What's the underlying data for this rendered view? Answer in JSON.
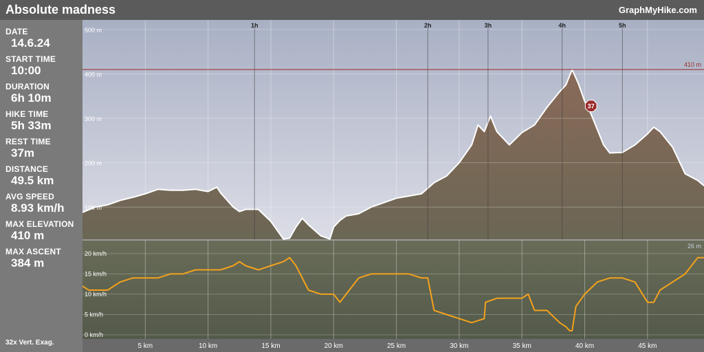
{
  "header": {
    "title": "Absolute madness",
    "brand": "GraphMyHike.com"
  },
  "stats": [
    {
      "label": "DATE",
      "value": "14.6.24"
    },
    {
      "label": "START TIME",
      "value": "10:00"
    },
    {
      "label": "DURATION",
      "value": "6h 10m"
    },
    {
      "label": "HIKE TIME",
      "value": "5h 33m"
    },
    {
      "label": "REST TIME",
      "value": "37m"
    },
    {
      "label": "DISTANCE",
      "value": "49.5 km"
    },
    {
      "label": "AVG SPEED",
      "value": "8.93 km/h"
    },
    {
      "label": "MAX ELEVATION",
      "value": "410 m"
    },
    {
      "label": "MAX ASCENT",
      "value": "384 m"
    }
  ],
  "footer": {
    "vert_exag": "32x Vert. Exag."
  },
  "colors": {
    "elevation_fill": "#7e7262",
    "elevation_line": "#ffffff",
    "speed_line": "#f4a21c",
    "max_line": "#9b2a2a",
    "rest_badge": "#9b2a2a"
  },
  "chart_data": [
    {
      "type": "area",
      "title": "",
      "xlabel": "",
      "ylabel": "",
      "unit": "m",
      "xlim": [
        0,
        49.5
      ],
      "ylim": [
        26,
        500
      ],
      "y_ticks": [
        "100 m",
        "200 m",
        "300 m",
        "400 m",
        "500 m"
      ],
      "y_tick_values": [
        100,
        200,
        300,
        400,
        500
      ],
      "time_markers": [
        {
          "label": "1h",
          "x": 13.7
        },
        {
          "label": "2h",
          "x": 27.5
        },
        {
          "label": "3h",
          "x": 32.3
        },
        {
          "label": "4h",
          "x": 38.2
        },
        {
          "label": "5h",
          "x": 43.0
        }
      ],
      "max_elevation": {
        "label": "410 m",
        "value": 410
      },
      "min_elevation": {
        "label": "26 m",
        "value": 26
      },
      "rest_stop": {
        "label": "37",
        "x": 40.5,
        "y": 328
      },
      "x": [
        0,
        1,
        2,
        3,
        4,
        5,
        6,
        7,
        8,
        9,
        10,
        10.7,
        11,
        12,
        12.5,
        13,
        13.5,
        14,
        15,
        16,
        16.5,
        17,
        17.5,
        18,
        19,
        19.7,
        20,
        20.5,
        21,
        22,
        23,
        24,
        25,
        26,
        27,
        28,
        29,
        30,
        31,
        31.5,
        32,
        32.5,
        33,
        34,
        35,
        36,
        37,
        38,
        38.5,
        39,
        39.5,
        40,
        40.5,
        41,
        41.5,
        42,
        43,
        44,
        45,
        45.5,
        46,
        47,
        48,
        49,
        49.5
      ],
      "y": [
        88,
        100,
        105,
        115,
        122,
        130,
        140,
        138,
        138,
        140,
        135,
        145,
        132,
        100,
        90,
        95,
        95,
        95,
        68,
        28,
        30,
        55,
        75,
        60,
        35,
        28,
        55,
        70,
        80,
        85,
        100,
        110,
        120,
        125,
        130,
        155,
        170,
        200,
        240,
        285,
        270,
        305,
        270,
        240,
        268,
        285,
        325,
        360,
        375,
        410,
        378,
        338,
        310,
        275,
        240,
        222,
        223,
        240,
        265,
        280,
        270,
        235,
        175,
        160,
        148
      ]
    },
    {
      "type": "line",
      "title": "",
      "xlabel": "",
      "ylabel": "",
      "unit": "km/h",
      "xlim": [
        0,
        49.5
      ],
      "ylim": [
        0,
        22
      ],
      "y_ticks": [
        "0 km/h",
        "5 km/h",
        "10 km/h",
        "15 km/h",
        "20 km/h"
      ],
      "y_tick_values": [
        0,
        5,
        10,
        15,
        20
      ],
      "x_ticks": [
        "5 km",
        "10 km",
        "15 km",
        "20 km",
        "25 km",
        "30 km",
        "35 km",
        "40 km",
        "45 km"
      ],
      "x_tick_values": [
        5,
        10,
        15,
        20,
        25,
        30,
        35,
        40,
        45
      ],
      "x": [
        0,
        0.5,
        1,
        2,
        3,
        4,
        5,
        6,
        7,
        8,
        9,
        10,
        11,
        12,
        12.5,
        13,
        14,
        15,
        16,
        16.5,
        17,
        18,
        19,
        20,
        20.5,
        21,
        22,
        23,
        24,
        25,
        26,
        27,
        27.5,
        28,
        29,
        30,
        31,
        32,
        32.1,
        33,
        34,
        35,
        35.5,
        36,
        37,
        38,
        38.5,
        38.8,
        39,
        39.3,
        40,
        41,
        42,
        43,
        44,
        45,
        45.5,
        46,
        47,
        48,
        49,
        49.5
      ],
      "y": [
        12,
        11,
        11,
        11,
        13,
        14,
        14,
        14,
        15,
        15,
        16,
        16,
        16,
        17,
        18,
        17,
        16,
        17,
        18,
        19,
        17,
        11,
        10,
        10,
        8,
        10,
        14,
        15,
        15,
        15,
        15,
        14,
        14,
        6,
        5,
        4,
        3,
        4,
        8,
        9,
        9,
        9,
        10,
        6,
        6,
        3,
        2,
        1,
        1,
        7,
        10,
        13,
        14,
        14,
        13,
        8,
        8,
        11,
        13,
        15,
        19,
        19
      ]
    }
  ]
}
